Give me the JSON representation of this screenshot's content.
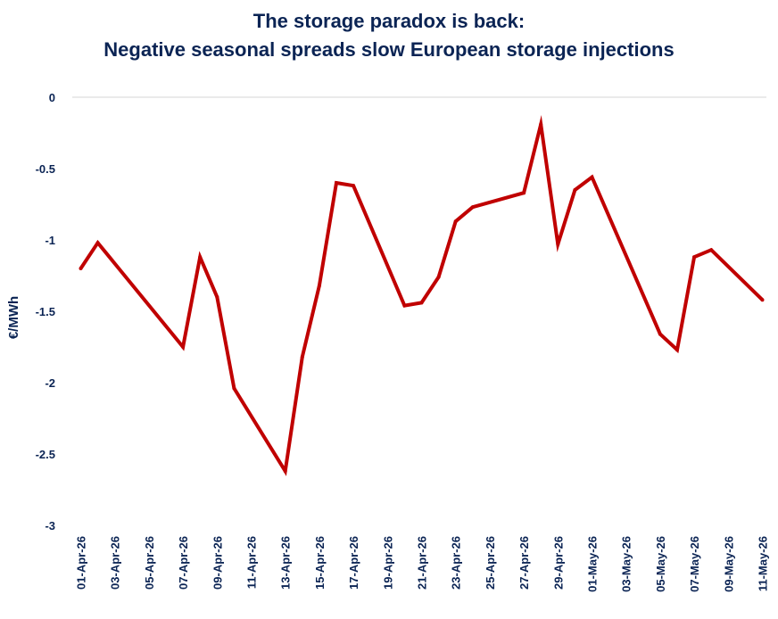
{
  "chart_data": {
    "type": "line",
    "title": "The storage paradox is back:",
    "subtitle": "Negative seasonal spreads slow European storage injections",
    "xlabel": "",
    "ylabel": "€/MWh",
    "ylim": [
      -3,
      0
    ],
    "yticks": [
      0,
      -0.5,
      -1,
      -1.5,
      -2,
      -2.5,
      -3
    ],
    "ytick_labels": [
      "0",
      "-0.5",
      "-1",
      "-1.5",
      "-2",
      "-2.5",
      "-3"
    ],
    "xtick_labels": [
      "01-Apr-26",
      "03-Apr-26",
      "05-Apr-26",
      "07-Apr-26",
      "09-Apr-26",
      "11-Apr-26",
      "13-Apr-26",
      "15-Apr-26",
      "17-Apr-26",
      "19-Apr-26",
      "21-Apr-26",
      "23-Apr-26",
      "25-Apr-26",
      "27-Apr-26",
      "29-Apr-26",
      "01-May-26",
      "03-May-26",
      "05-May-26",
      "07-May-26",
      "09-May-26",
      "11-May-26"
    ],
    "grid": "top baseline only",
    "legend": "none",
    "line_color": "#c00000",
    "series": [
      {
        "x": [
          "01-Apr-26",
          "02-Apr-26",
          "07-Apr-26",
          "08-Apr-26",
          "09-Apr-26",
          "10-Apr-26",
          "13-Apr-26",
          "14-Apr-26",
          "15-Apr-26",
          "16-Apr-26",
          "17-Apr-26",
          "20-Apr-26",
          "21-Apr-26",
          "22-Apr-26",
          "23-Apr-26",
          "24-Apr-26",
          "27-Apr-26",
          "28-Apr-26",
          "29-Apr-26",
          "30-Apr-26",
          "01-May-26",
          "05-May-26",
          "06-May-26",
          "07-May-26",
          "08-May-26",
          "11-May-26"
        ],
        "values": [
          -1.2,
          -1.02,
          -1.75,
          -1.12,
          -1.4,
          -2.04,
          -2.62,
          -1.82,
          -1.32,
          -0.6,
          -0.62,
          -1.46,
          -1.44,
          -1.26,
          -0.87,
          -0.77,
          -0.67,
          -0.19,
          -1.03,
          -0.65,
          -0.56,
          -1.66,
          -1.77,
          -1.12,
          -1.07,
          -1.42
        ]
      }
    ]
  }
}
